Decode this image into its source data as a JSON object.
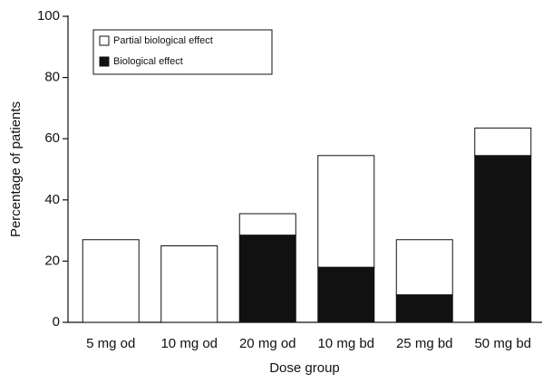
{
  "chart_data": {
    "type": "stacked_bar",
    "x_label": "Dose group",
    "y_label": "Percentage of patients",
    "categories": [
      "5 mg od",
      "10 mg od",
      "20 mg od",
      "10 mg bd",
      "25 mg bd",
      "50 mg bd"
    ],
    "series": [
      {
        "name": "Partial biological effect",
        "color": "#ffffff",
        "values": [
          27,
          25,
          7,
          36.5,
          18,
          9
        ]
      },
      {
        "name": "Biological effect",
        "color": "#111111",
        "values": [
          0,
          0,
          28.5,
          18,
          9,
          54.5
        ]
      }
    ],
    "ylim": [
      0,
      100
    ],
    "yticks": [
      0,
      20,
      40,
      60,
      80,
      100
    ],
    "legend": "upper left"
  }
}
